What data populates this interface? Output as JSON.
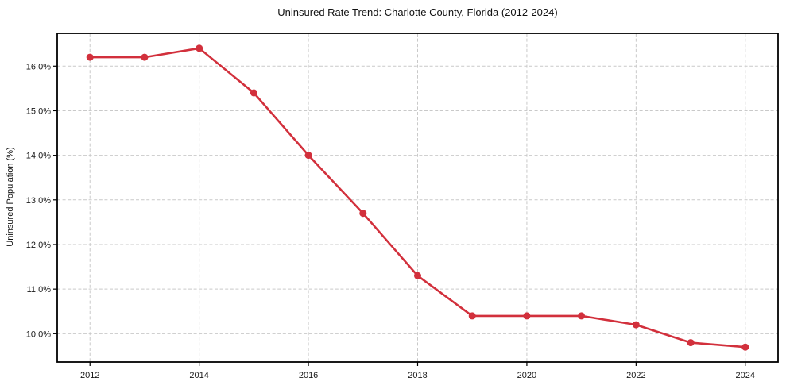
{
  "chart_data": {
    "type": "line",
    "title": "Uninsured Rate Trend: Charlotte County, Florida (2012-2024)",
    "xlabel": "",
    "ylabel": "Uninsured Population (%)",
    "x": [
      2012,
      2013,
      2014,
      2015,
      2016,
      2017,
      2018,
      2019,
      2020,
      2021,
      2022,
      2023,
      2024
    ],
    "series": [
      {
        "name": "Uninsured Rate",
        "values": [
          16.2,
          16.2,
          16.4,
          15.4,
          14.0,
          12.7,
          11.3,
          10.4,
          10.4,
          10.4,
          10.2,
          9.8,
          9.7
        ]
      }
    ],
    "x_ticks": [
      2012,
      2014,
      2016,
      2018,
      2020,
      2022,
      2024
    ],
    "x_tick_labels": [
      "2012",
      "2014",
      "2016",
      "2018",
      "2020",
      "2022",
      "2024"
    ],
    "y_ticks": [
      10.0,
      11.0,
      12.0,
      13.0,
      14.0,
      15.0,
      16.0
    ],
    "y_tick_labels": [
      "10.0%",
      "11.0%",
      "12.0%",
      "13.0%",
      "14.0%",
      "15.0%",
      "16.0%"
    ],
    "xlim": [
      2011.4,
      2024.6
    ],
    "ylim": [
      9.365,
      16.735
    ],
    "grid": true,
    "grid_style": "dashed",
    "legend": "none",
    "marker": "circle",
    "colors": {
      "line": "#d2303c",
      "marker": "#d2303c",
      "grid": "#c9c9c9",
      "axis": "#000000",
      "text": "#1a1a1a",
      "background": "#ffffff"
    }
  }
}
